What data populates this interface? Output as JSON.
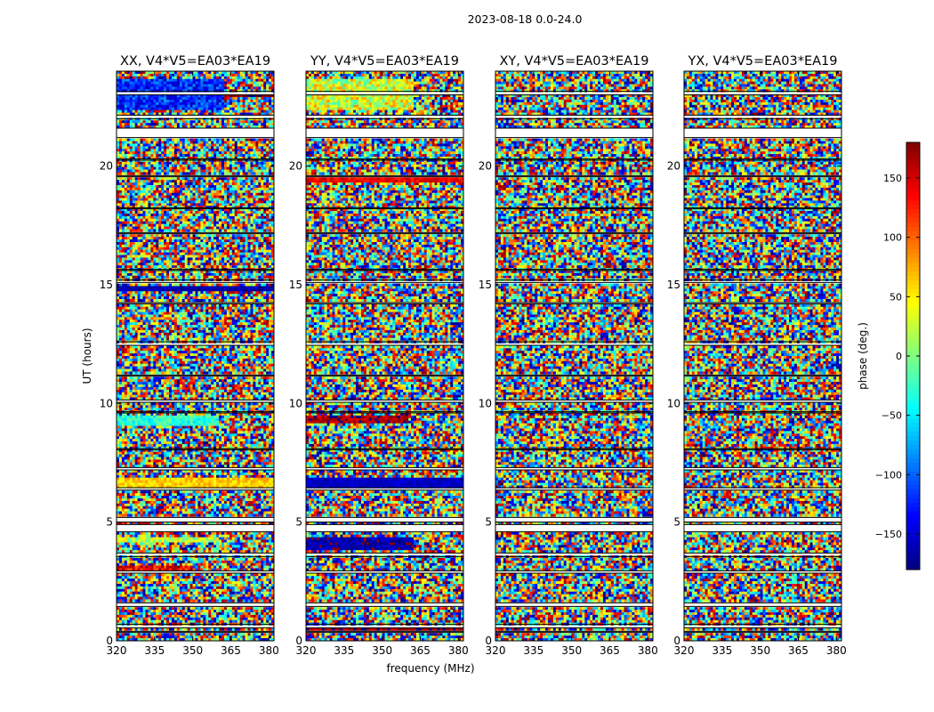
{
  "chart_data": {
    "type": "heatmap",
    "title": "2023-08-18 0.0-24.0",
    "ylabel": "UT (hours)",
    "xlabel": "frequency (MHz)",
    "xlim": [
      320,
      382
    ],
    "ylim": [
      0,
      24
    ],
    "xticks": [
      320,
      335,
      350,
      365,
      380
    ],
    "yticks": [
      0,
      5,
      10,
      15,
      20
    ],
    "colorbar": {
      "label": "phase (deg.)",
      "range": [
        -180,
        180
      ],
      "ticks": [
        150,
        100,
        50,
        0,
        -50,
        -100,
        -150
      ],
      "tick_labels": [
        "150",
        "100",
        "50",
        "0",
        "−50",
        "−100",
        "−150"
      ],
      "colormap": "jet"
    },
    "panels": [
      {
        "title": "XX, V4*V5=EA03*EA19",
        "bands": [
          {
            "t0": 22.35,
            "t1": 23.7,
            "phase": -120,
            "jitter": 40,
            "fmax": 362
          },
          {
            "t0": 22.9,
            "t1": 23.15,
            "phase": 170,
            "jitter": 15,
            "fmax": 382
          },
          {
            "t0": 14.7,
            "t1": 14.95,
            "phase": -165,
            "jitter": 15,
            "fmax": 382
          },
          {
            "t0": 9.1,
            "t1": 9.45,
            "phase": -30,
            "jitter": 30,
            "fmax": 360
          },
          {
            "t0": 6.45,
            "t1": 6.9,
            "phase": 60,
            "jitter": 25,
            "fmax": 382
          },
          {
            "t0": 4.1,
            "t1": 4.4,
            "phase": 20,
            "jitter": 45,
            "fmax": 360
          },
          {
            "t0": 3.0,
            "t1": 3.2,
            "phase": 140,
            "jitter": 40,
            "fmax": 350
          }
        ]
      },
      {
        "title": "YY, V4*V5=EA03*EA19",
        "bands": [
          {
            "t0": 22.35,
            "t1": 23.7,
            "phase": 30,
            "jitter": 55,
            "fmax": 362
          },
          {
            "t0": 19.3,
            "t1": 19.5,
            "phase": 140,
            "jitter": 20,
            "fmax": 382
          },
          {
            "t0": 9.2,
            "t1": 9.45,
            "phase": 165,
            "jitter": 25,
            "fmax": 360
          },
          {
            "t0": 6.4,
            "t1": 6.9,
            "phase": -155,
            "jitter": 15,
            "fmax": 382
          },
          {
            "t0": 3.8,
            "t1": 4.4,
            "phase": -165,
            "jitter": 20,
            "fmax": 362
          },
          {
            "t0": 0.4,
            "t1": 0.6,
            "phase": 170,
            "jitter": 20,
            "fmax": 382
          }
        ]
      },
      {
        "title": "XY, V4*V5=EA03*EA19",
        "bands": []
      },
      {
        "title": "YX, V4*V5=EA03*EA19",
        "bands": []
      }
    ],
    "flagged_gaps_hours": [
      [
        23.0,
        23.15
      ],
      [
        22.0,
        22.15
      ],
      [
        21.2,
        21.6
      ],
      [
        20.25,
        20.3
      ],
      [
        19.55,
        19.6
      ],
      [
        18.2,
        18.25
      ],
      [
        17.15,
        17.2
      ],
      [
        15.6,
        15.65
      ],
      [
        15.1,
        15.2
      ],
      [
        14.2,
        14.25
      ],
      [
        12.45,
        12.6
      ],
      [
        11.15,
        11.2
      ],
      [
        10.05,
        10.15
      ],
      [
        9.6,
        9.65
      ],
      [
        8.05,
        8.1
      ],
      [
        7.2,
        7.3
      ],
      [
        6.35,
        6.45
      ],
      [
        5.0,
        5.2
      ],
      [
        4.6,
        4.9
      ],
      [
        3.55,
        3.7
      ],
      [
        2.85,
        2.95
      ],
      [
        1.45,
        1.6
      ],
      [
        0.55,
        0.7
      ],
      [
        0.35,
        0.4
      ]
    ]
  }
}
